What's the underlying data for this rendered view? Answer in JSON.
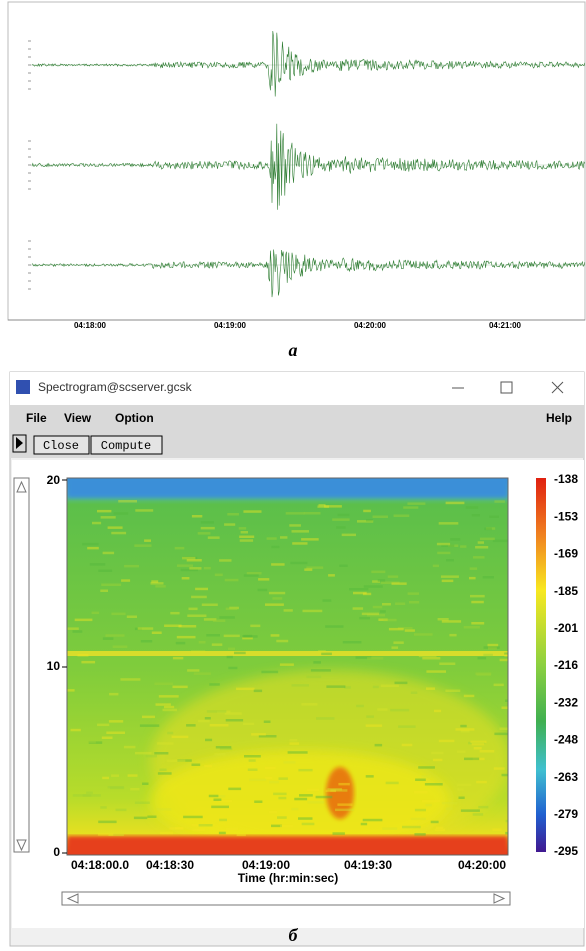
{
  "panel_a": {
    "time_labels": [
      "04:18:00",
      "04:19:00",
      "04:20:00",
      "04:21:00"
    ],
    "label": "а"
  },
  "window": {
    "title": "Spectrogram@scserver.gcsk",
    "menu": [
      "File",
      "View",
      "Option"
    ],
    "help": "Help",
    "buttons": [
      "Close",
      "Compute"
    ]
  },
  "spectrogram": {
    "yticks": [
      "0",
      "10",
      "20"
    ],
    "xticks": [
      "04:18:00.0",
      "04:18:30",
      "04:19:00",
      "04:19:30",
      "04:20:00"
    ],
    "x_label": "Time (hr:min:sec)",
    "colorbar_labels": [
      "-138",
      "-153",
      "-169",
      "-185",
      "-201",
      "-216",
      "-232",
      "-248",
      "-263",
      "-279",
      "-295"
    ]
  },
  "panel_b": {
    "label": "б"
  }
}
